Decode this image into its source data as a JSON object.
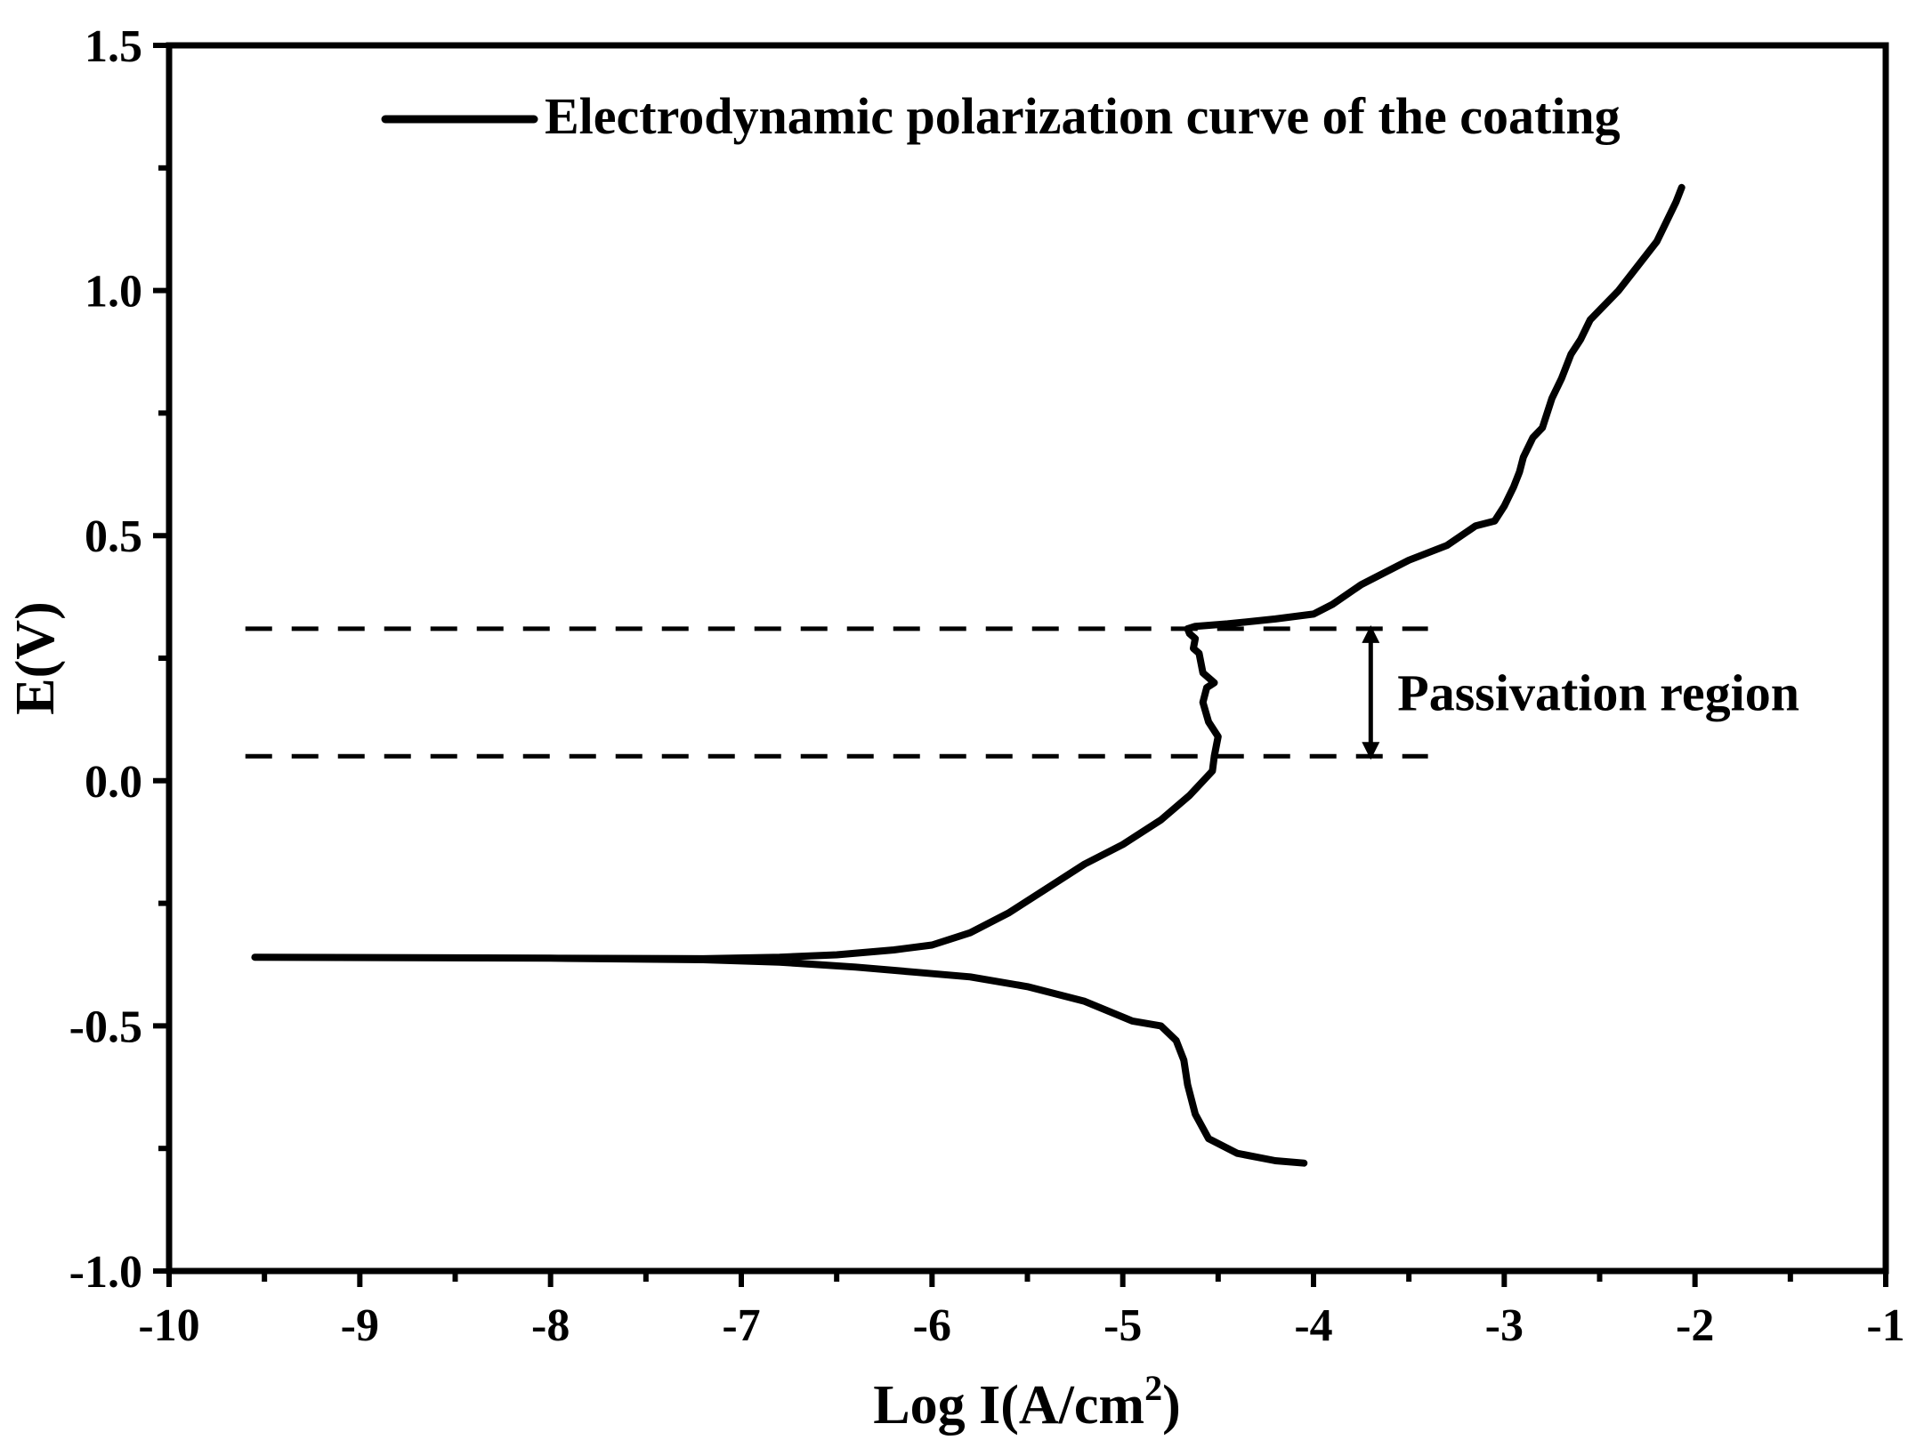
{
  "chart_data": {
    "type": "line",
    "title": "",
    "xlabel_main": "Log I(A/cm",
    "xlabel_sup": "2",
    "xlabel_close": ")",
    "ylabel": "E(V)",
    "xlim": [
      -10,
      -1
    ],
    "ylim": [
      -1.0,
      1.5
    ],
    "x_ticks": [
      -10,
      -9,
      -8,
      -7,
      -6,
      -5,
      -4,
      -3,
      -2,
      -1
    ],
    "x_tick_labels": [
      "-10",
      "-9",
      "-8",
      "-7",
      "-6",
      "-5",
      "-4",
      "-3",
      "-2",
      "-1"
    ],
    "y_ticks": [
      -1.0,
      -0.5,
      0.0,
      0.5,
      1.0,
      1.5
    ],
    "y_tick_labels": [
      "-1.0",
      "-0.5",
      "0.0",
      "0.5",
      "1.0",
      "1.5"
    ],
    "grid": false,
    "legend_position": "top-right",
    "series": [
      {
        "name": "Electrodynamic polarization curve of the coating",
        "color": "#000000",
        "x": [
          -4.05,
          -4.2,
          -4.4,
          -4.55,
          -4.62,
          -4.66,
          -4.68,
          -4.72,
          -4.8,
          -4.95,
          -5.2,
          -5.5,
          -5.8,
          -6.1,
          -6.4,
          -6.8,
          -7.2,
          -8.0,
          -9.55,
          -8.0,
          -7.2,
          -6.8,
          -6.5,
          -6.2,
          -6.0,
          -5.8,
          -5.6,
          -5.4,
          -5.2,
          -5.0,
          -4.8,
          -4.65,
          -4.53,
          -4.52,
          -4.5,
          -4.55,
          -4.58,
          -4.56,
          -4.52,
          -4.58,
          -4.6,
          -4.63,
          -4.62,
          -4.65,
          -4.66,
          -4.62,
          -4.45,
          -4.2,
          -4.0,
          -3.9,
          -3.75,
          -3.6,
          -3.5,
          -3.3,
          -3.15,
          -3.05,
          -3.0,
          -2.95,
          -2.92,
          -2.9,
          -2.85,
          -2.8,
          -2.75,
          -2.7,
          -2.65,
          -2.6,
          -2.55,
          -2.4,
          -2.3,
          -2.2,
          -2.1,
          -2.07
        ],
        "y": [
          -0.78,
          -0.775,
          -0.76,
          -0.73,
          -0.68,
          -0.62,
          -0.57,
          -0.53,
          -0.5,
          -0.49,
          -0.45,
          -0.42,
          -0.4,
          -0.39,
          -0.38,
          -0.37,
          -0.365,
          -0.362,
          -0.36,
          -0.362,
          -0.363,
          -0.36,
          -0.355,
          -0.345,
          -0.335,
          -0.31,
          -0.27,
          -0.22,
          -0.17,
          -0.13,
          -0.08,
          -0.03,
          0.02,
          0.05,
          0.09,
          0.12,
          0.16,
          0.19,
          0.2,
          0.22,
          0.26,
          0.27,
          0.29,
          0.3,
          0.31,
          0.315,
          0.32,
          0.33,
          0.34,
          0.36,
          0.4,
          0.43,
          0.45,
          0.48,
          0.52,
          0.53,
          0.56,
          0.6,
          0.63,
          0.66,
          0.7,
          0.72,
          0.78,
          0.82,
          0.87,
          0.9,
          0.94,
          1.0,
          1.05,
          1.1,
          1.18,
          1.21
        ]
      }
    ],
    "reference_lines": [
      {
        "style": "dashed",
        "y": 0.31,
        "x_from": -9.6,
        "x_to": -3.4
      },
      {
        "style": "dashed",
        "y": 0.05,
        "x_from": -9.6,
        "x_to": -3.4
      }
    ],
    "annotations": [
      {
        "text": "Passivation region",
        "arrow_x": -3.7,
        "y_from": 0.05,
        "y_to": 0.31
      }
    ]
  }
}
